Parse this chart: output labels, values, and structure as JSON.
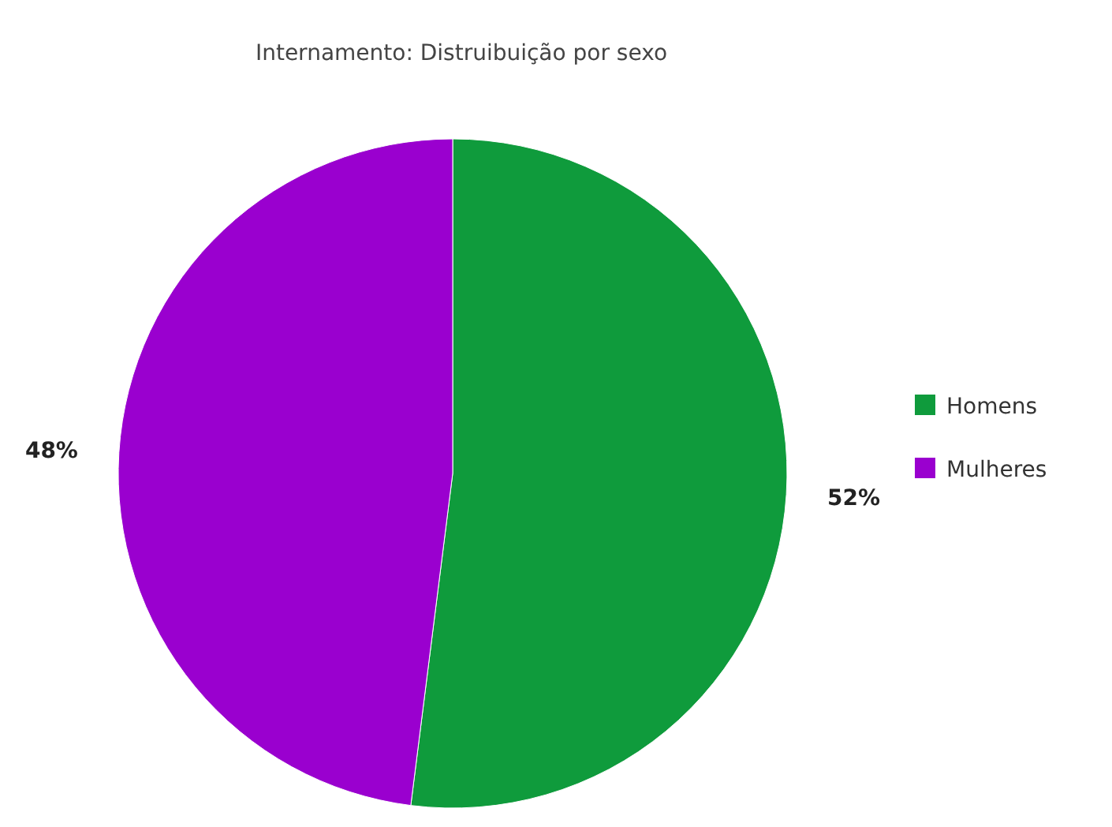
{
  "chart_data": {
    "type": "pie",
    "title": "Internamento: Distruibuição por sexo",
    "categories": [
      "Homens",
      "Mulheres"
    ],
    "values": [
      52,
      48
    ],
    "colors": [
      "#0f9b3c",
      "#9a00cf"
    ],
    "value_labels": [
      "52%",
      "48%"
    ],
    "legend": "right"
  }
}
